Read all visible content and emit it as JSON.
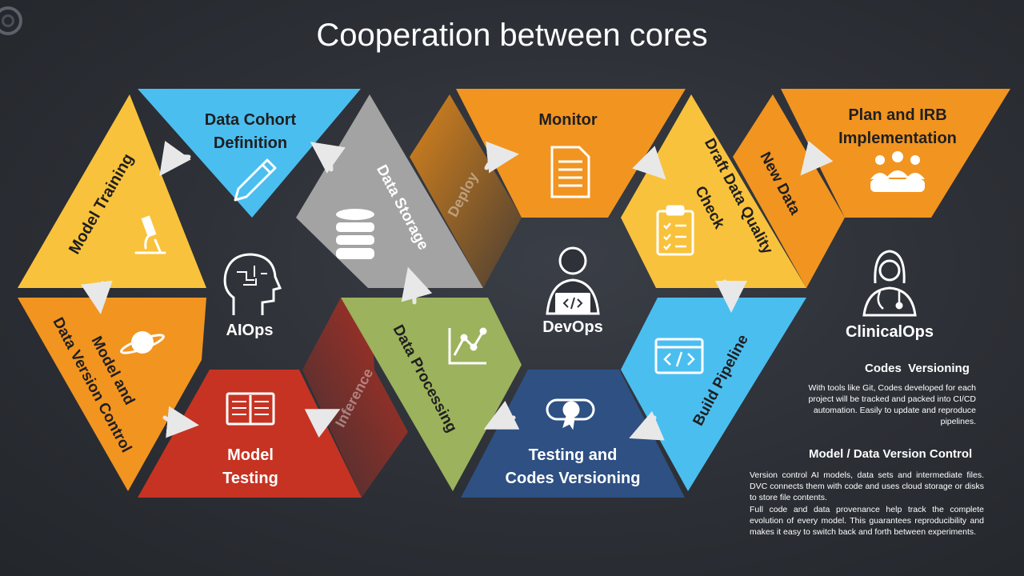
{
  "title": "Cooperation between cores",
  "colors": {
    "background": "#2b2e34",
    "yellow": "#f9c23c",
    "blue": "#4bbef0",
    "gray": "#a3a3a3",
    "orange": "#f29420",
    "red": "#c63323",
    "green": "#9cb25c",
    "navy": "#2e5083",
    "white": "#ffffff"
  },
  "segments": {
    "model_training": "Model Training",
    "data_cohort_line1": "Data Cohort",
    "data_cohort_line2": "Definition",
    "data_storage": "Data Storage",
    "deploy": "Deploy",
    "monitor": "Monitor",
    "draft_dq_line1": "Draft Data Quality",
    "draft_dq_line2": "Check",
    "new_data": "New Data",
    "plan_irb_line1": "Plan and IRB",
    "plan_irb_line2": "Implementation",
    "model_dvc_line1": "Model and",
    "model_dvc_line2": "Data Version Control",
    "model_testing_line1": "Model",
    "model_testing_line2": "Testing",
    "inference": "Inference",
    "data_processing": "Data Processing",
    "testing_line1": "Testing and",
    "testing_line2": "Codes Versioning",
    "build_pipeline": "Build Pipeline"
  },
  "cores": {
    "aiops": "AIOps",
    "devops": "DevOps",
    "clinicalops": "ClinicalOps"
  },
  "icons": [
    "pencil-icon",
    "microscope-icon",
    "database-icon",
    "document-icon",
    "checklist-icon",
    "team-icon",
    "planet-icon",
    "book-icon",
    "chart-icon",
    "certificate-icon",
    "code-window-icon",
    "brain-head-icon",
    "developer-icon",
    "doctor-icon"
  ],
  "codes_versioning": {
    "heading": "Codes  Versioning",
    "body": "With tools like Git, Codes developed for each project will be tracked and packed into CI/CD automation. Easily to update and reproduce pipelines."
  },
  "model_data_version_control": {
    "heading": "Model / Data Version Control",
    "body1": "Version control AI models, data sets and intermediate files. DVC connects them with code and uses cloud storage or disks to store file contents.",
    "body2": "Full code and data provenance help track the complete evolution of every model. This guarantees reproducibility and makes it easy to switch back and forth between experiments."
  }
}
